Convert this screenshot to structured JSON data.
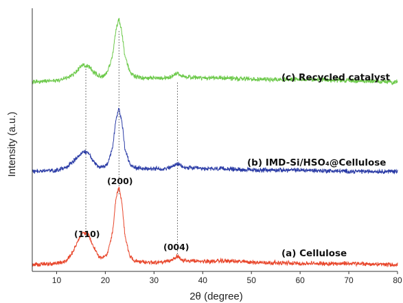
{
  "chart_data": {
    "type": "line",
    "xlabel": "2θ (degree)",
    "ylabel": "Intensity (a.u.)",
    "xlim": [
      5,
      80
    ],
    "ylim": [
      0,
      100
    ],
    "x_ticks": [
      10,
      20,
      30,
      40,
      50,
      60,
      70,
      80
    ],
    "y_ticks_visible": false,
    "grid": false,
    "legend": "none",
    "reference_lines_x": [
      16,
      22.8,
      34.8
    ],
    "annotations": [
      {
        "text": "(110)",
        "x": 16
      },
      {
        "text": "(200)",
        "x": 22.8
      },
      {
        "text": "(004)",
        "x": 34.8
      }
    ],
    "series": [
      {
        "name": "(a) Cellulose",
        "color": "#e8452a",
        "baseline": 2.5,
        "points": [
          [
            5,
            2.5
          ],
          [
            10,
            3
          ],
          [
            12,
            4
          ],
          [
            13.5,
            8
          ],
          [
            14.5,
            12
          ],
          [
            15.5,
            15
          ],
          [
            16.5,
            14
          ],
          [
            17.5,
            10
          ],
          [
            18.5,
            6
          ],
          [
            19.5,
            5
          ],
          [
            20.5,
            7
          ],
          [
            21.5,
            15
          ],
          [
            22.2,
            28
          ],
          [
            22.8,
            32
          ],
          [
            23.4,
            26
          ],
          [
            24,
            14
          ],
          [
            25,
            6
          ],
          [
            26,
            4
          ],
          [
            28,
            3.5
          ],
          [
            30,
            3.5
          ],
          [
            32,
            3.5
          ],
          [
            33.5,
            4
          ],
          [
            34.8,
            6
          ],
          [
            36,
            4
          ],
          [
            40,
            3.8
          ],
          [
            45,
            4
          ],
          [
            50,
            3.5
          ],
          [
            60,
            3
          ],
          [
            70,
            3
          ],
          [
            80,
            2.5
          ]
        ]
      },
      {
        "name": "(b) IMD-Si/HSO₄@Cellulose",
        "color": "#2b3ca6",
        "baseline": 38,
        "points": [
          [
            5,
            38
          ],
          [
            10,
            38.5
          ],
          [
            12,
            39.5
          ],
          [
            13.5,
            42
          ],
          [
            14.5,
            44
          ],
          [
            15.5,
            45.5
          ],
          [
            16.5,
            45
          ],
          [
            17.5,
            42
          ],
          [
            18.5,
            40
          ],
          [
            19.5,
            39.5
          ],
          [
            20.5,
            41
          ],
          [
            21.5,
            47
          ],
          [
            22.2,
            58
          ],
          [
            22.8,
            62
          ],
          [
            23.4,
            57
          ],
          [
            24,
            47
          ],
          [
            25,
            41
          ],
          [
            26,
            39.5
          ],
          [
            28,
            39
          ],
          [
            30,
            39
          ],
          [
            32,
            39
          ],
          [
            33.5,
            39.5
          ],
          [
            34.8,
            41
          ],
          [
            36,
            39.5
          ],
          [
            40,
            39
          ],
          [
            45,
            39
          ],
          [
            50,
            38.5
          ],
          [
            60,
            38.5
          ],
          [
            70,
            38
          ],
          [
            80,
            38
          ]
        ]
      },
      {
        "name": "(c) Recycled catalyst",
        "color": "#6cc94a",
        "baseline": 72,
        "points": [
          [
            5,
            72
          ],
          [
            10,
            72.5
          ],
          [
            12,
            73.5
          ],
          [
            13.5,
            75
          ],
          [
            14.5,
            77
          ],
          [
            15.5,
            78.5
          ],
          [
            16.5,
            78
          ],
          [
            17.5,
            76
          ],
          [
            18.5,
            74.5
          ],
          [
            19.5,
            74
          ],
          [
            20.5,
            76
          ],
          [
            21.5,
            82
          ],
          [
            22.2,
            92
          ],
          [
            22.8,
            96
          ],
          [
            23.4,
            91
          ],
          [
            24,
            82
          ],
          [
            25,
            76
          ],
          [
            26,
            74
          ],
          [
            28,
            73.5
          ],
          [
            30,
            73.5
          ],
          [
            32,
            73.5
          ],
          [
            33.5,
            74
          ],
          [
            34.8,
            75.5
          ],
          [
            36,
            74
          ],
          [
            40,
            73.5
          ],
          [
            45,
            73.5
          ],
          [
            50,
            73
          ],
          [
            60,
            73
          ],
          [
            70,
            72.5
          ],
          [
            80,
            72
          ]
        ]
      }
    ]
  }
}
